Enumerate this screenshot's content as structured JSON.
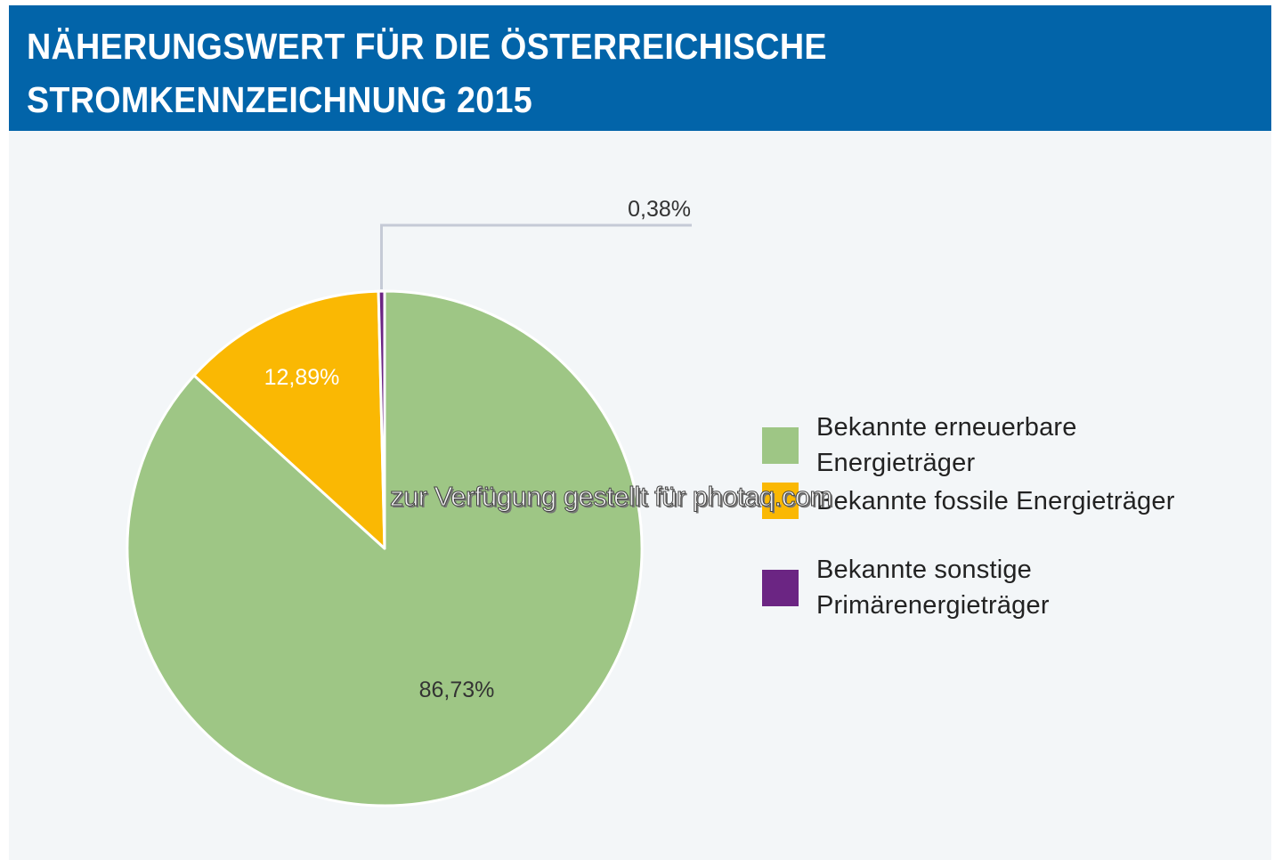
{
  "header": {
    "title_line1": "NÄHERUNGSWERT FÜR DIE ÖSTERREICHISCHE",
    "title_line2": "STROMKENNZEICHNUNG 2015"
  },
  "chart_data": {
    "type": "pie",
    "title": "Näherungswert für die österreichische Stromkennzeichnung 2015",
    "categories": [
      "Bekannte erneuerbare Energieträger",
      "Bekannte fossile Energieträger",
      "Bekannte sonstige Primärenergieträger"
    ],
    "values": [
      86.73,
      12.89,
      0.38
    ],
    "labels": [
      "86,73%",
      "12,89%",
      "0,38%"
    ],
    "colors": [
      "#9ec685",
      "#fab803",
      "#6b2583"
    ],
    "label_colors": [
      "#333333",
      "#ffffff",
      "#333333"
    ],
    "legend_position": "right",
    "start": "top",
    "direction": "clockwise"
  },
  "legend": [
    {
      "line1": "Bekannte erneuerbare",
      "line2": "Energieträger",
      "color": "#9ec685"
    },
    {
      "line1": "Bekannte fossile Energieträger",
      "line2": "",
      "color": "#fab803"
    },
    {
      "line1": "Bekannte sonstige",
      "line2": "Primärenergieträger",
      "color": "#6b2583"
    }
  ],
  "watermark": "zur Verfügung gestellt für photaq.com"
}
